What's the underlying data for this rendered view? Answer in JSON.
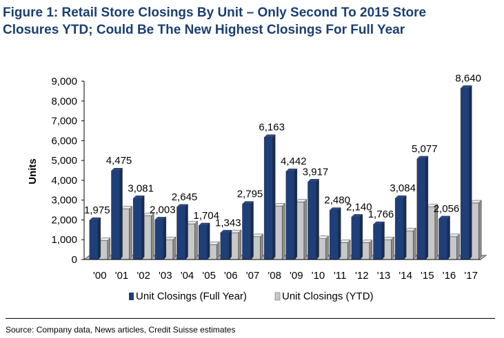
{
  "title_lines": [
    "Figure 1: Retail Store Closings By Unit – Only Second To 2015 Store",
    "Closures YTD; Could Be The New Highest Closings For Full Year"
  ],
  "source": "Source: Company data, News articles, Credit Suisse estimates",
  "chart_data": {
    "type": "bar",
    "title": "Figure 1: Retail Store Closings By Unit – Only Second To 2015 Store Closures YTD; Could Be The New Highest Closings For Full Year",
    "xlabel": "",
    "ylabel": "Units",
    "ylim": [
      0,
      9000
    ],
    "yticks": [
      0,
      1000,
      2000,
      3000,
      4000,
      5000,
      6000,
      7000,
      8000,
      9000
    ],
    "ytick_labels": [
      "0",
      "1,000",
      "2,000",
      "3,000",
      "4,000",
      "5,000",
      "6,000",
      "7,000",
      "8,000",
      "9,000"
    ],
    "categories": [
      "'00",
      "'01",
      "'02",
      "'03",
      "'04",
      "'05",
      "'06",
      "'07",
      "'08",
      "'09",
      "'10",
      "'11",
      "'12",
      "'13",
      "'14",
      "'15",
      "'16",
      "'17"
    ],
    "series": [
      {
        "name": "Unit Closings (Full Year)",
        "color": "#1f3f7a",
        "values": [
          1975,
          4475,
          3081,
          2003,
          2645,
          1704,
          1343,
          2795,
          6163,
          4442,
          3917,
          2480,
          2140,
          1766,
          3084,
          5077,
          2056,
          8640
        ],
        "labels": [
          "1,975",
          "4,475",
          "3,081",
          "2,003",
          "2,645",
          "1,704",
          "1,343",
          "2,795",
          "6,163",
          "4,442",
          "3,917",
          "2,480",
          "2,140",
          "1,766",
          "3,084",
          "5,077",
          "2,056",
          "8,640"
        ]
      },
      {
        "name": "Unit Closings (YTD)",
        "color": "#c8c8c8",
        "values": [
          950,
          2550,
          2200,
          1000,
          1800,
          750,
          1350,
          1150,
          2700,
          2900,
          1050,
          850,
          850,
          1000,
          1450,
          2650,
          1150,
          2850
        ]
      }
    ],
    "legend_position": "bottom",
    "grid": false
  }
}
